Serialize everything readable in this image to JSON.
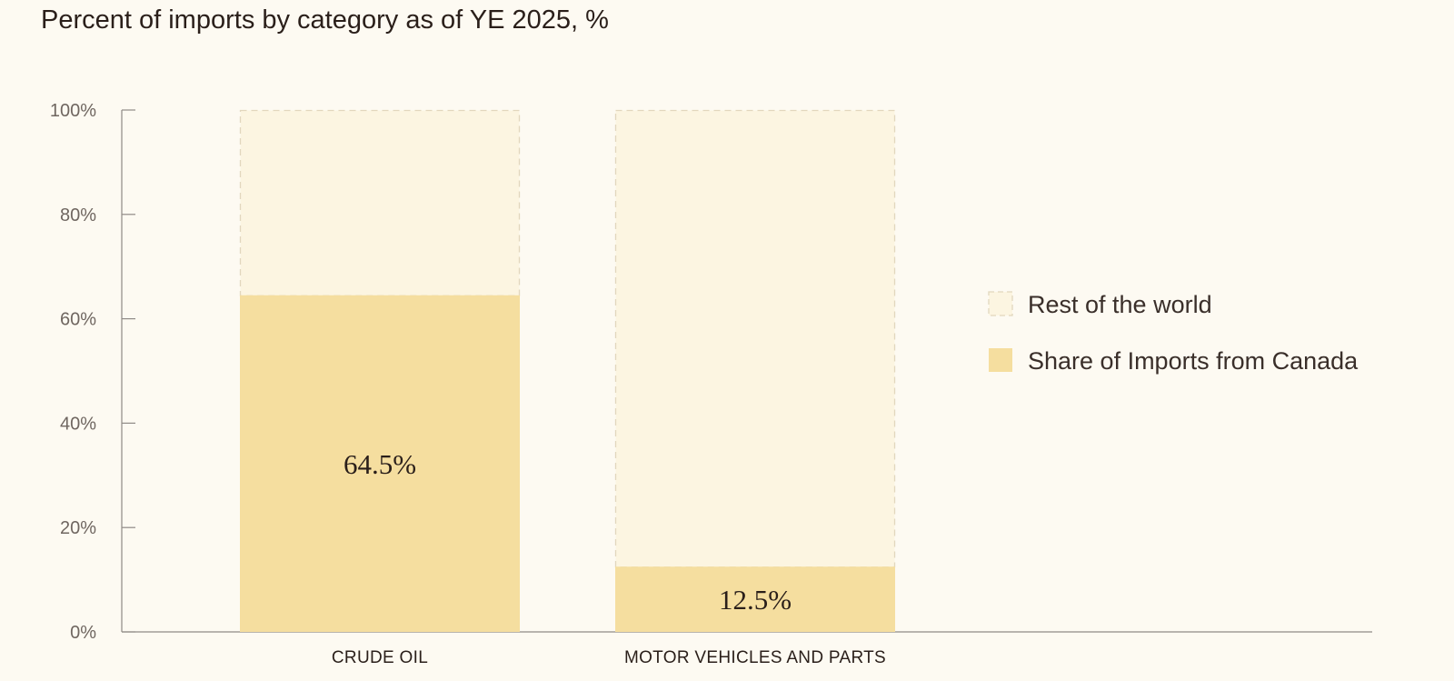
{
  "chart_data": {
    "type": "bar",
    "stacked": true,
    "title": "Percent of imports by category as of YE 2025, %",
    "categories": [
      "CRUDE OIL",
      "MOTOR VEHICLES AND PARTS"
    ],
    "series": [
      {
        "name": "Share of Imports from Canada",
        "values": [
          64.5,
          12.5
        ],
        "labels": [
          "64.5%",
          "12.5%"
        ],
        "color": "#f5de9f"
      },
      {
        "name": "Rest of the world",
        "values": [
          35.5,
          87.5
        ],
        "color": "#fcf5e1",
        "border": "dashed"
      }
    ],
    "ylim": [
      0,
      100
    ],
    "yticks": [
      "0%",
      "20%",
      "40%",
      "60%",
      "80%",
      "100%"
    ],
    "grid": false,
    "legend_position": "right",
    "legend_order": [
      "Rest of the world",
      "Share of Imports from Canada"
    ],
    "xlabel": "",
    "ylabel": ""
  }
}
